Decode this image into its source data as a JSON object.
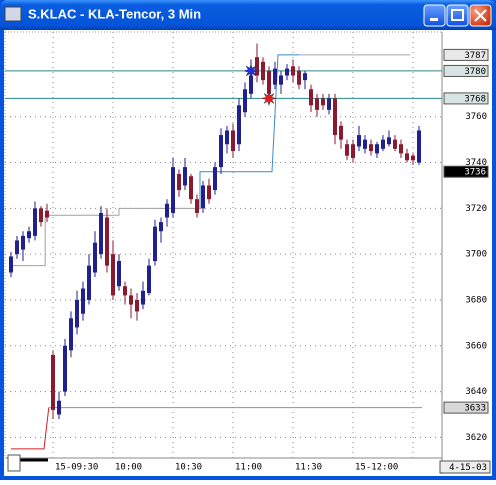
{
  "window": {
    "title": "S.KLAC - KLA-Tencor, 3 Min"
  },
  "chart_data": {
    "type": "candlestick",
    "categories": [
      null,
      null,
      null,
      null,
      null,
      null,
      null,
      "15-09:30",
      null,
      null,
      null,
      null,
      null,
      null,
      null,
      null,
      null,
      "10:00",
      null,
      null,
      null,
      null,
      null,
      null,
      null,
      null,
      null,
      "10:30",
      null,
      null,
      null,
      null,
      null,
      null,
      null,
      null,
      null,
      "11:00",
      null,
      null,
      null,
      null,
      null,
      null,
      null,
      null,
      null,
      "11:30",
      null,
      null,
      null,
      null,
      null,
      null,
      null,
      null,
      null,
      "15-12:00",
      null,
      null,
      null,
      null,
      null,
      null,
      null,
      null,
      null,
      null,
      null
    ],
    "open": [
      3692,
      3700,
      3702,
      3707,
      3708,
      3720,
      3719,
      3656,
      3630,
      3640,
      3658,
      3668,
      3674,
      3680,
      3692,
      3700,
      3716,
      3700,
      3686,
      3686,
      3682,
      3680,
      3678,
      3683,
      3697,
      3710,
      3716,
      3718,
      3735,
      3730,
      3734,
      3724,
      3720,
      3730,
      3728,
      3738,
      3748,
      3754,
      3748,
      3762,
      3770,
      3786,
      3784,
      3780,
      3774,
      3774,
      3778,
      3782,
      3780,
      3776,
      3772,
      3768,
      3768,
      3763,
      3768,
      3756,
      3748,
      3748,
      3747,
      3746,
      3748,
      3744,
      3746,
      3748,
      3750,
      3748,
      3744,
      3743,
      3740
    ],
    "high": [
      3701,
      3708,
      3710,
      3712,
      3723,
      3721,
      3722,
      3658,
      3640,
      3663,
      3675,
      3684,
      3688,
      3700,
      3710,
      3721,
      3720,
      3706,
      3700,
      3688,
      3685,
      3683,
      3688,
      3698,
      3715,
      3716,
      3724,
      3742,
      3737,
      3742,
      3735,
      3726,
      3732,
      3733,
      3740,
      3755,
      3756,
      3757,
      3768,
      3775,
      3785,
      3792,
      3786,
      3782,
      3784,
      3780,
      3783,
      3785,
      3782,
      3780,
      3774,
      3770,
      3770,
      3770,
      3770,
      3758,
      3750,
      3750,
      3756,
      3752,
      3750,
      3749,
      3752,
      3754,
      3752,
      3750,
      3746,
      3744,
      3756
    ],
    "low": [
      3690,
      3698,
      3697,
      3705,
      3706,
      3712,
      3714,
      3628,
      3628,
      3638,
      3655,
      3665,
      3671,
      3678,
      3690,
      3698,
      3692,
      3680,
      3684,
      3678,
      3672,
      3671,
      3676,
      3682,
      3695,
      3705,
      3712,
      3716,
      3725,
      3728,
      3722,
      3716,
      3718,
      3722,
      3726,
      3735,
      3744,
      3742,
      3745,
      3760,
      3768,
      3775,
      3774,
      3766,
      3772,
      3770,
      3776,
      3775,
      3772,
      3772,
      3762,
      3760,
      3763,
      3761,
      3748,
      3746,
      3741,
      3740,
      3745,
      3744,
      3743,
      3742,
      3745,
      3747,
      3745,
      3742,
      3740,
      3739,
      3739
    ],
    "close": [
      3699,
      3706,
      3708,
      3710,
      3720,
      3714,
      3716,
      3632,
      3636,
      3660,
      3672,
      3680,
      3685,
      3695,
      3705,
      3718,
      3695,
      3682,
      3697,
      3682,
      3678,
      3675,
      3684,
      3695,
      3712,
      3714,
      3722,
      3738,
      3728,
      3738,
      3724,
      3718,
      3730,
      3724,
      3738,
      3752,
      3754,
      3745,
      3765,
      3772,
      3778,
      3778,
      3776,
      3770,
      3781,
      3778,
      3781,
      3778,
      3774,
      3779,
      3765,
      3763,
      3765,
      3768,
      3752,
      3750,
      3743,
      3742,
      3752,
      3750,
      3745,
      3748,
      3750,
      3751,
      3746,
      3744,
      3741,
      3741,
      3754
    ],
    "up_color": "#202090",
    "down_color": "#8a1a30",
    "ylim": [
      3611,
      3797
    ],
    "yticks": [
      3620,
      3640,
      3660,
      3680,
      3700,
      3720,
      3740,
      3760
    ],
    "grid": true,
    "hlines": [
      {
        "value": 3780,
        "color": "#2a8a8a"
      },
      {
        "value": 3768,
        "color": "#2a8a8a"
      }
    ],
    "price_tags": [
      {
        "value": 3787,
        "background": "#e8e8e8",
        "color": "#000000"
      },
      {
        "value": 3780,
        "background": "#d8e4e4",
        "color": "#000000"
      },
      {
        "value": 3768,
        "background": "#d8e4e4",
        "color": "#000000"
      },
      {
        "value": 3736,
        "background": "#000000",
        "color": "#ffffff"
      },
      {
        "value": 3633,
        "background": "#d8d8d8",
        "color": "#000000"
      }
    ],
    "step_lines": [
      {
        "color": "#a0a0a0",
        "x": [
          0,
          5.7,
          5.7,
          18,
          18,
          31.5
        ],
        "values": [
          3695,
          3695,
          3717,
          3717,
          3720,
          3720
        ]
      },
      {
        "color": "#3a8ac8",
        "x": [
          31.5,
          31.5,
          43.5,
          44.5,
          48
        ],
        "values": [
          3720,
          3736,
          3736,
          3787,
          3787
        ]
      },
      {
        "color": "#a8a8a8",
        "x": [
          48,
          66.5
        ],
        "values": [
          3787,
          3787
        ]
      },
      {
        "color": "#d02020",
        "x": [
          0,
          5.5,
          6.3
        ],
        "values": [
          3615,
          3615,
          3633
        ]
      },
      {
        "color": "#909090",
        "x": [
          6.3,
          68.5
        ],
        "values": [
          3633,
          3633
        ]
      }
    ],
    "markers": [
      {
        "x": 40,
        "value": 3780,
        "color": "#2030e0"
      },
      {
        "x": 43,
        "value": 3768,
        "color": "#e02020"
      }
    ],
    "date_label": "4-15-03"
  }
}
